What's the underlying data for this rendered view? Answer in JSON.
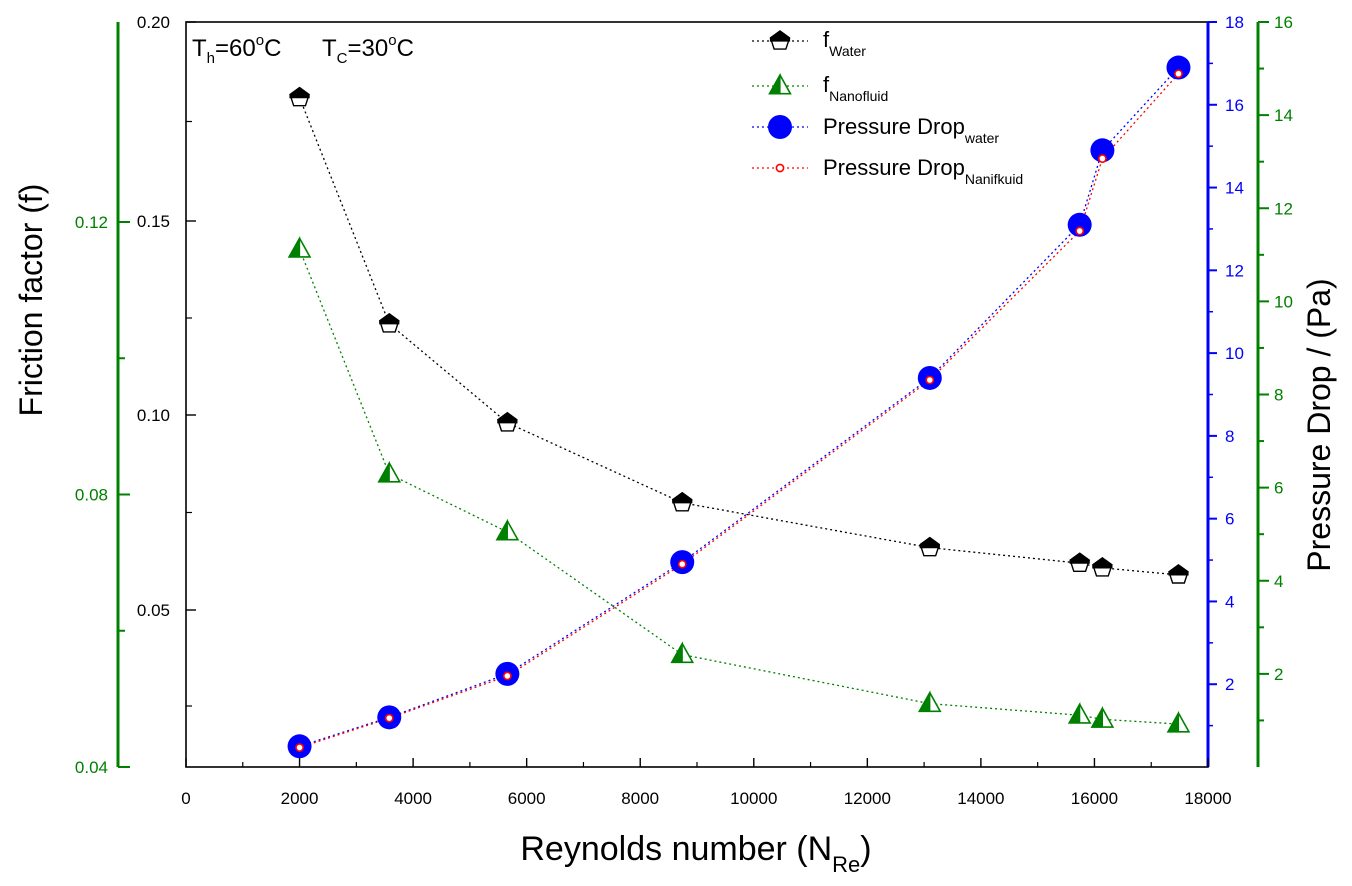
{
  "colors": {
    "black": "#000000",
    "green": "#008000",
    "blue": "#0000ff",
    "red": "#ff0000"
  },
  "annotation": {
    "th_base": "T",
    "th_sub": "h",
    "th_val": "=60",
    "th_sup": "o",
    "th_unit": "C",
    "tc_base": "T",
    "tc_sub": "C",
    "tc_val": "=30",
    "tc_sup": "o",
    "tc_unit": "C"
  },
  "legend": [
    {
      "base": "f",
      "sub": "Water"
    },
    {
      "base": "f",
      "sub": "Nanofluid"
    },
    {
      "base": "Pressure Drop",
      "sub": "water"
    },
    {
      "base": "Pressure Drop",
      "sub": "Nanifkuid"
    }
  ],
  "chart_data": {
    "type": "scatter",
    "xlabel": "Reynolds number (N",
    "xlabel_sub": "Re",
    "xlabel_close": ")",
    "ylabel": "Friction factor (f)",
    "y2label": "Pressure Drop / (Pa)",
    "xlim": [
      0,
      18000
    ],
    "xticks": [
      "0",
      "2000",
      "4000",
      "6000",
      "8000",
      "10000",
      "12000",
      "14000",
      "16000",
      "18000"
    ],
    "yticks_left_black": [
      "0.05",
      "0.10",
      "0.15",
      "0.20"
    ],
    "yticks_left_green": [
      "0.04",
      "0.08",
      "0.12"
    ],
    "yticks_right_blue": [
      "2",
      "4",
      "6",
      "8",
      "10",
      "12",
      "14",
      "16",
      "18"
    ],
    "yticks_right_green": [
      "2",
      "4",
      "6",
      "8",
      "10",
      "12",
      "14",
      "16"
    ],
    "x": [
      2000,
      3580,
      5660,
      8740,
      13100,
      15740,
      16140,
      17480
    ],
    "series": [
      {
        "values": [
          0.181,
          0.1235,
          0.098,
          0.0775,
          0.066,
          0.062,
          0.0608,
          0.059
        ]
      },
      {
        "values": [
          0.116,
          0.083,
          0.0745,
          0.0565,
          0.0493,
          0.0476,
          0.047,
          0.0463
        ]
      },
      {
        "values": [
          0.5,
          1.2,
          2.25,
          4.95,
          9.4,
          13.1,
          14.9,
          16.9
        ]
      },
      {
        "values": [
          0.47,
          1.18,
          2.2,
          4.9,
          9.35,
          12.95,
          14.7,
          16.75
        ]
      }
    ]
  }
}
